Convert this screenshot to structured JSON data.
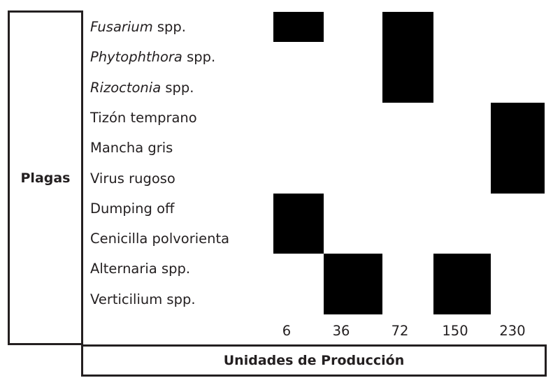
{
  "chart_data": {
    "type": "heatmap",
    "ylabel": "Plagas",
    "xlabel": "Unidades de Producción",
    "categories_x": [
      "6",
      "36",
      "72",
      "150",
      "230"
    ],
    "rows": [
      {
        "italic": "Fusarium",
        "rest": " spp."
      },
      {
        "italic": "Phytophthora",
        "rest": " spp."
      },
      {
        "italic": "Rizoctonia",
        "rest": " spp."
      },
      {
        "italic": "",
        "rest": "Tizón temprano"
      },
      {
        "italic": "",
        "rest": "Mancha gris"
      },
      {
        "italic": "",
        "rest": "Virus rugoso"
      },
      {
        "italic": "",
        "rest": "Dumping off"
      },
      {
        "italic": "",
        "rest": "Cenicilla polvorienta"
      },
      {
        "italic": "",
        "rest": "Alternaria spp."
      },
      {
        "italic": "",
        "rest": "Verticilium spp."
      }
    ],
    "matrix": [
      [
        1,
        0,
        1,
        0,
        0
      ],
      [
        0,
        0,
        1,
        0,
        0
      ],
      [
        0,
        0,
        1,
        0,
        0
      ],
      [
        0,
        0,
        0,
        0,
        1
      ],
      [
        0,
        0,
        0,
        0,
        1
      ],
      [
        0,
        0,
        0,
        0,
        1
      ],
      [
        1,
        0,
        0,
        0,
        0
      ],
      [
        1,
        0,
        0,
        0,
        0
      ],
      [
        0,
        1,
        0,
        1,
        0
      ],
      [
        0,
        1,
        0,
        1,
        0
      ]
    ],
    "cell_color": "#000000",
    "grid": false
  }
}
